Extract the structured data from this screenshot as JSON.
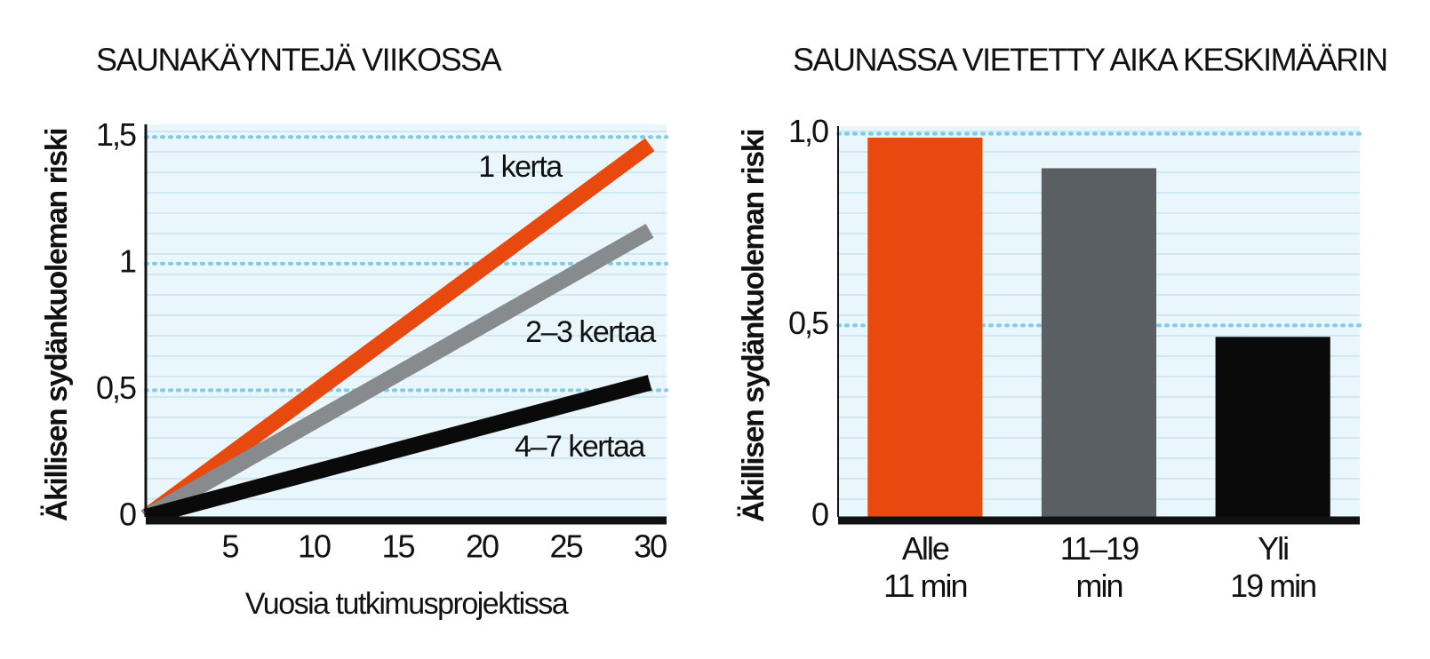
{
  "chart_data": [
    {
      "type": "line",
      "title": "SAUNAKÄYNTEJÄ VIIKOSSA",
      "y_label": "Äkillisen sydänkuoleman riski",
      "x_label": "Vuosia tutkimusprojektissa",
      "xlim": [
        0,
        31
      ],
      "xticks": [
        5,
        10,
        15,
        20,
        25,
        30
      ],
      "ylim": [
        0,
        1.55
      ],
      "yticks": [
        0,
        {
          "value": 0.5,
          "label": "0,5"
        },
        1,
        {
          "value": 1.5,
          "label": "1,5"
        }
      ],
      "grid": true,
      "x": [
        0,
        30
      ],
      "series": [
        {
          "name": "1 kerta",
          "color": "#e8490f",
          "values": [
            0,
            1.47
          ]
        },
        {
          "name": "2–3 kertaa",
          "color": "#878b8d",
          "values": [
            0,
            1.13
          ]
        },
        {
          "name": "4–7 kertaa",
          "color": "#0a0a0a",
          "values": [
            0,
            0.53
          ]
        }
      ]
    },
    {
      "type": "bar",
      "title": "SAUNASSA VIETETTY AIKA KESKIMÄÄRIN",
      "y_label": "Äkillisen sydänkuoleman riski",
      "categories": [
        "Alle\n11 min",
        "11–19\nmin",
        "Yli\n19 min"
      ],
      "values": [
        0.99,
        0.91,
        0.47
      ],
      "colors": [
        "#e8490f",
        "#5a5f63",
        "#0a0a0a"
      ],
      "ylim": [
        0,
        1.02
      ],
      "yticks": [
        0,
        {
          "value": 0.5,
          "label": "0,5"
        },
        {
          "value": 1.0,
          "label": "1,0"
        }
      ],
      "grid": true
    }
  ]
}
